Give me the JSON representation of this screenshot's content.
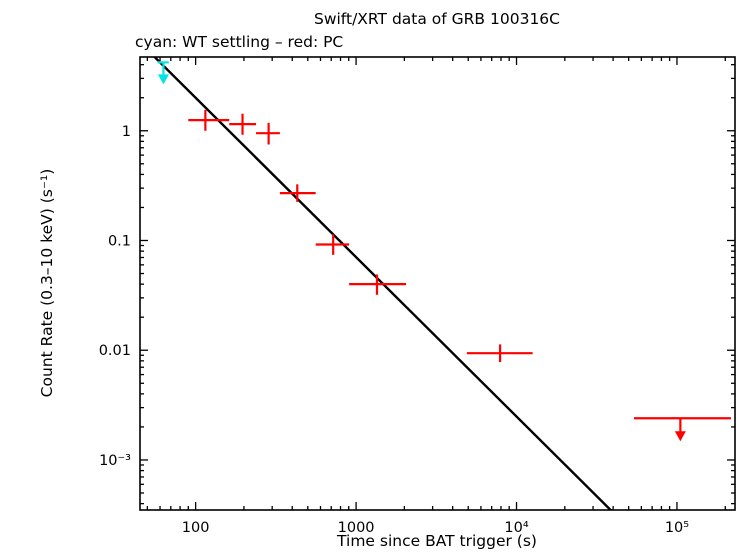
{
  "chart_data": {
    "type": "scatter",
    "title": "Swift/XRT data of GRB 100316C",
    "subtitle": "cyan: WT settling – red: PC",
    "xlabel": "Time since BAT trigger (s)",
    "ylabel": "Count Rate (0.3–10 keV) (s⁻¹)",
    "xscale": "log",
    "yscale": "log",
    "xlim": [
      45,
      230000
    ],
    "ylim": [
      0.00035,
      4.7
    ],
    "grid": false,
    "x_major_ticks": [
      100,
      1000,
      10000,
      100000
    ],
    "x_tick_labels": [
      "100",
      "1000",
      "10⁴",
      "10⁵"
    ],
    "y_major_ticks": [
      1,
      0.1,
      0.01,
      0.001
    ],
    "y_tick_labels": [
      "1",
      "0.1",
      "0.01",
      "10⁻³"
    ],
    "colors": {
      "wt": "#00e5e5",
      "pc": "#ff0000",
      "fit": "#000000",
      "frame": "#000000"
    },
    "series": [
      {
        "name": "WT settling",
        "mode": "WT",
        "color": "#00e5e5",
        "points": [],
        "upper_limits": [
          {
            "x": 63,
            "y": 4.2,
            "xlo": 58,
            "xhi": 68,
            "len": 13
          }
        ]
      },
      {
        "name": "PC",
        "mode": "PC",
        "color": "#ff0000",
        "points": [
          {
            "x": 115,
            "xlo": 90,
            "xhi": 162,
            "y": 1.25,
            "ylo": 1.0,
            "yhi": 1.55
          },
          {
            "x": 196,
            "xlo": 162,
            "xhi": 238,
            "y": 1.15,
            "ylo": 0.92,
            "yhi": 1.43
          },
          {
            "x": 285,
            "xlo": 238,
            "xhi": 335,
            "y": 0.95,
            "ylo": 0.75,
            "yhi": 1.18
          },
          {
            "x": 430,
            "xlo": 335,
            "xhi": 560,
            "y": 0.27,
            "ylo": 0.225,
            "yhi": 0.325
          },
          {
            "x": 720,
            "xlo": 560,
            "xhi": 905,
            "y": 0.092,
            "ylo": 0.074,
            "yhi": 0.114
          },
          {
            "x": 1350,
            "xlo": 905,
            "xhi": 2050,
            "y": 0.04,
            "ylo": 0.032,
            "yhi": 0.049
          },
          {
            "x": 7900,
            "xlo": 4900,
            "xhi": 12600,
            "y": 0.0094,
            "ylo": 0.0078,
            "yhi": 0.0113
          }
        ],
        "upper_limits": [
          {
            "x": 105000,
            "y": 0.0024,
            "xlo": 54000,
            "xhi": 217000,
            "len": 14
          }
        ]
      }
    ],
    "fit_line": {
      "description": "power-law decay fit, slope ≈ -1.45",
      "x1": 48,
      "y1": 5.8,
      "x2": 45000,
      "y2": 0.00028
    }
  }
}
